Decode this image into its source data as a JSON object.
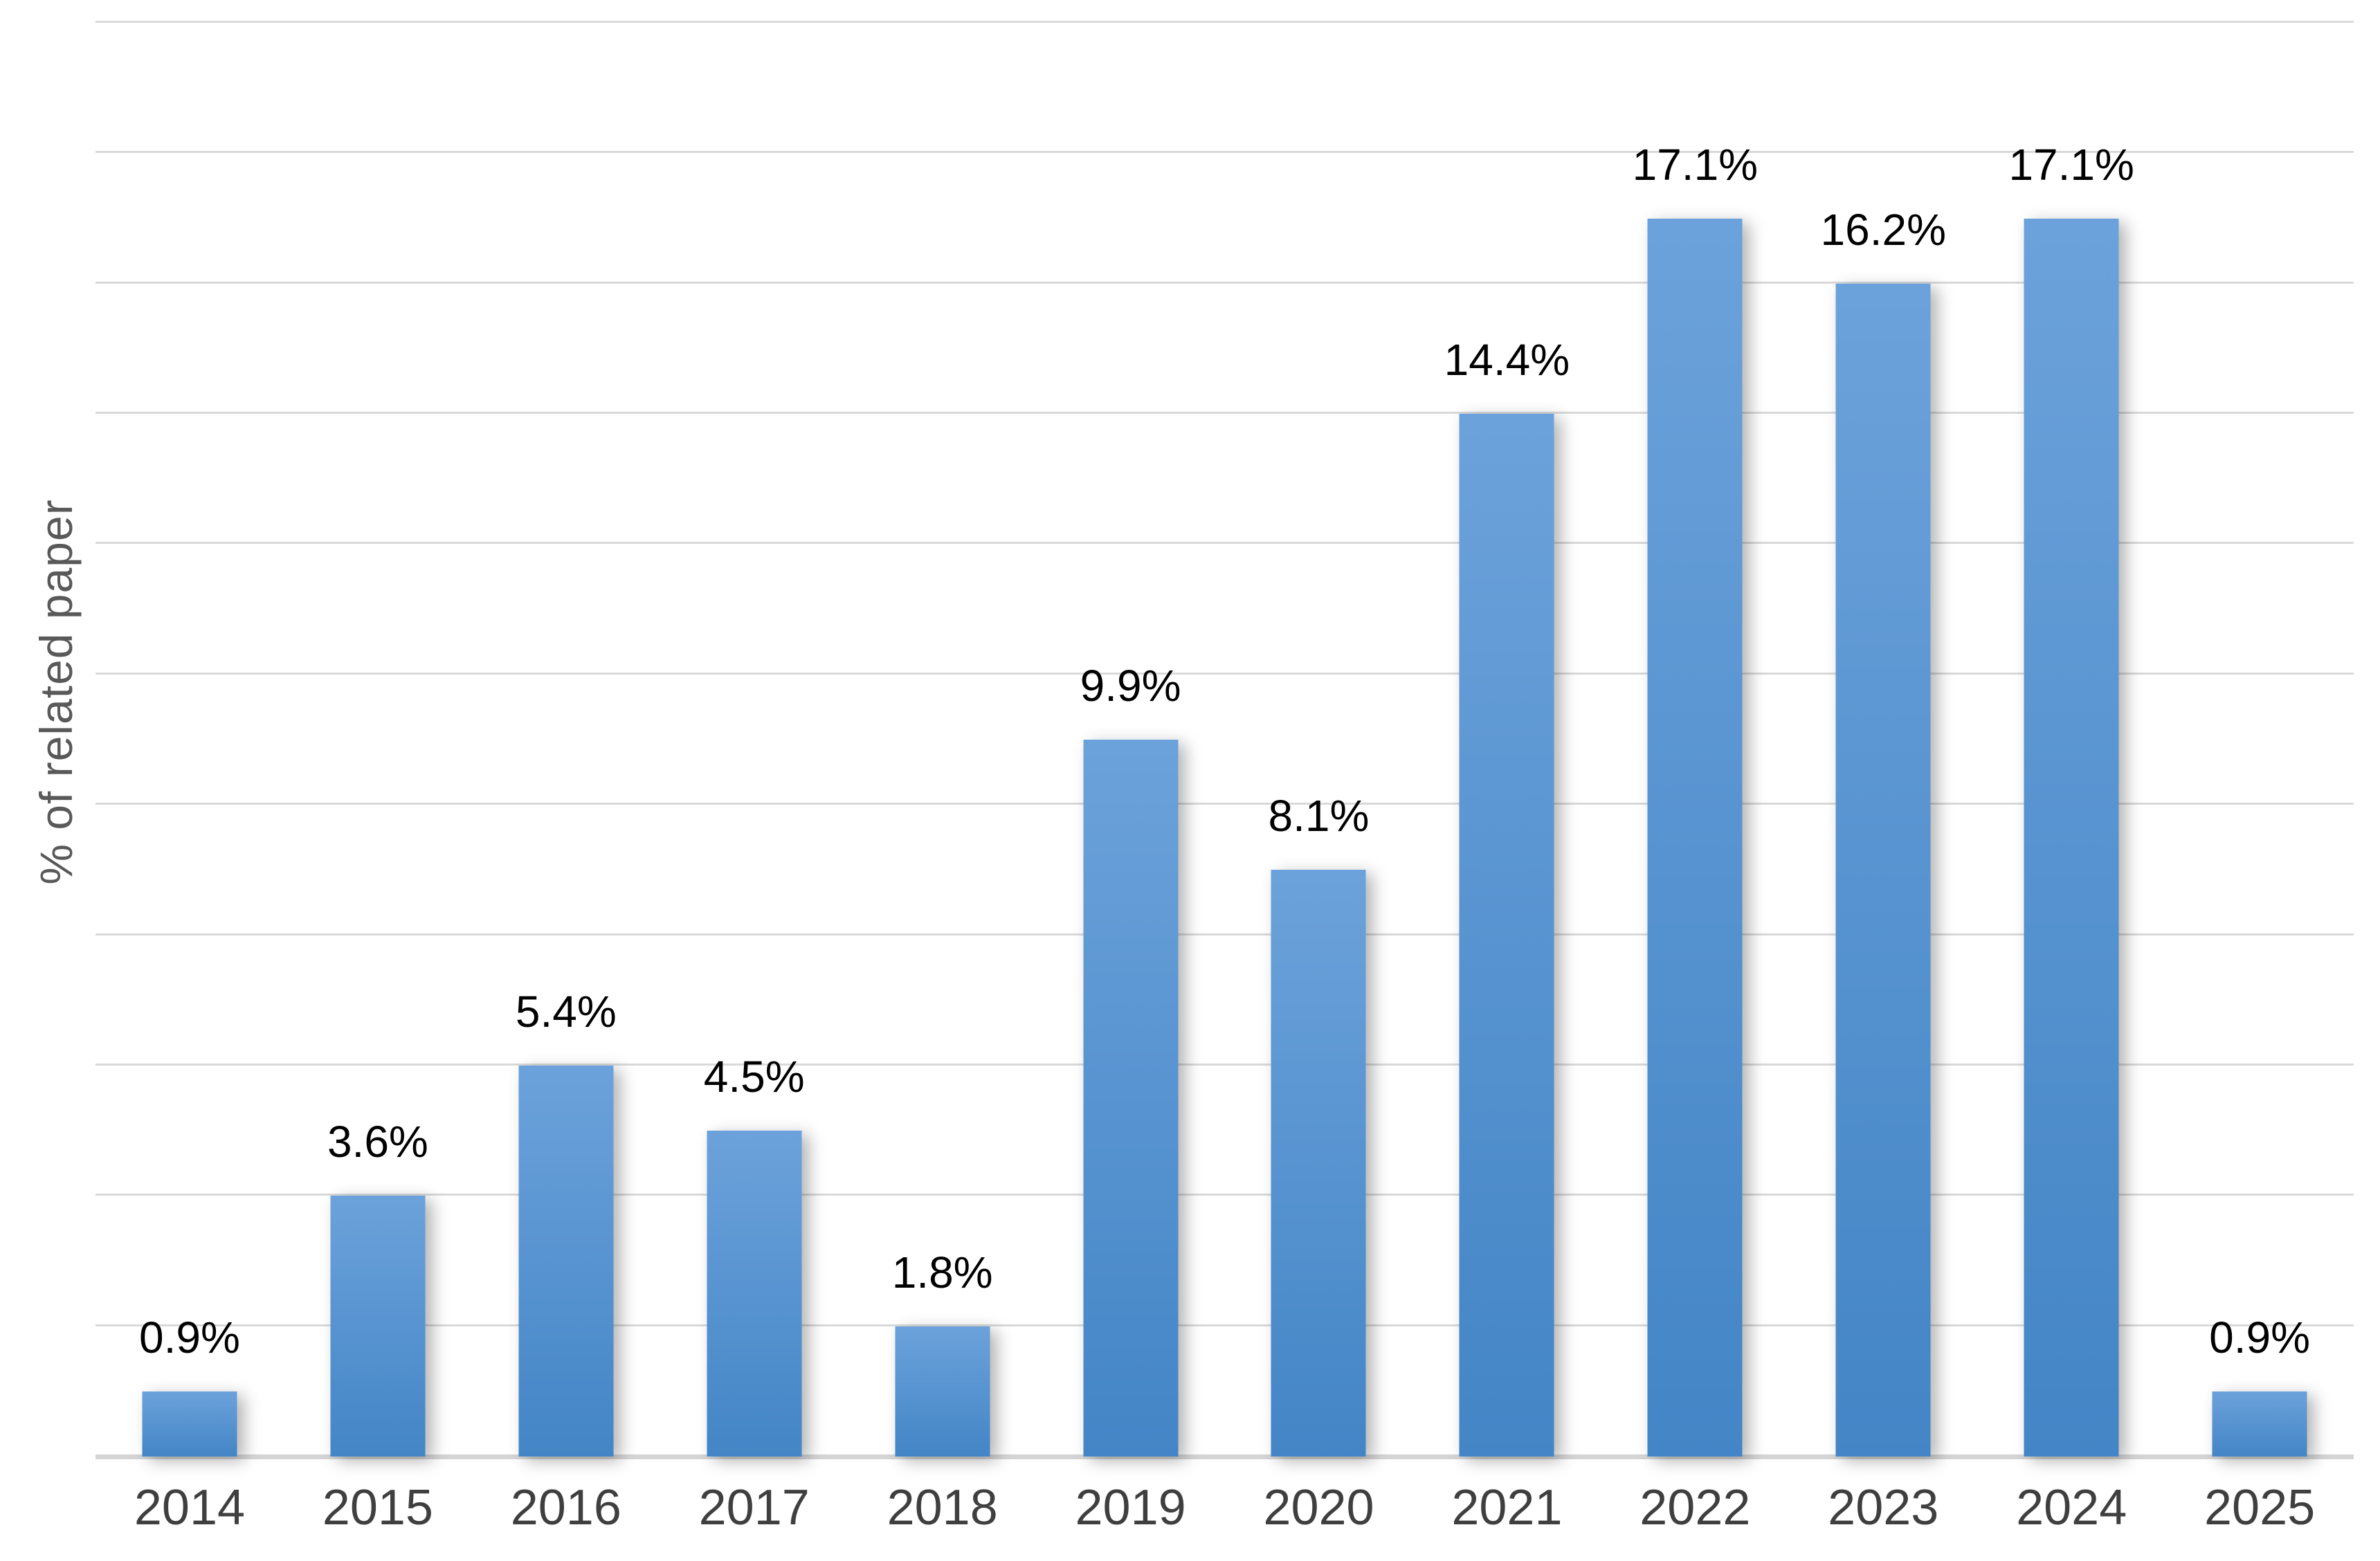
{
  "chart_data": {
    "type": "bar",
    "title": "",
    "categories": [
      "2014",
      "2015",
      "2016",
      "2017",
      "2018",
      "2019",
      "2020",
      "2021",
      "2022",
      "2023",
      "2024",
      "2025"
    ],
    "values": [
      0.9,
      3.6,
      5.4,
      4.5,
      1.8,
      9.9,
      8.1,
      14.4,
      17.1,
      16.2,
      17.1,
      0.9
    ],
    "value_labels": [
      "0.9%",
      "3.6%",
      "5.4%",
      "4.5%",
      "1.8%",
      "9.9%",
      "8.1%",
      "14.4%",
      "17.1%",
      "16.2%",
      "17.1%",
      "0.9%"
    ],
    "xlabel": "",
    "ylabel": "% of related paper",
    "ylim": [
      0,
      19.8
    ],
    "gridline_step": 1.8,
    "grid": "horizontal",
    "legend": "none",
    "data_labels": "above-bars",
    "colors": {
      "bar_top": "#6CA2DB",
      "bar_bottom": "#4385C6",
      "gridline": "#D9D9D9",
      "baseline": "#D5D5D5",
      "value_label": "#000000",
      "tick_label": "#3F3F3F",
      "axis_title": "#595959",
      "background": "#FFFFFF"
    }
  }
}
